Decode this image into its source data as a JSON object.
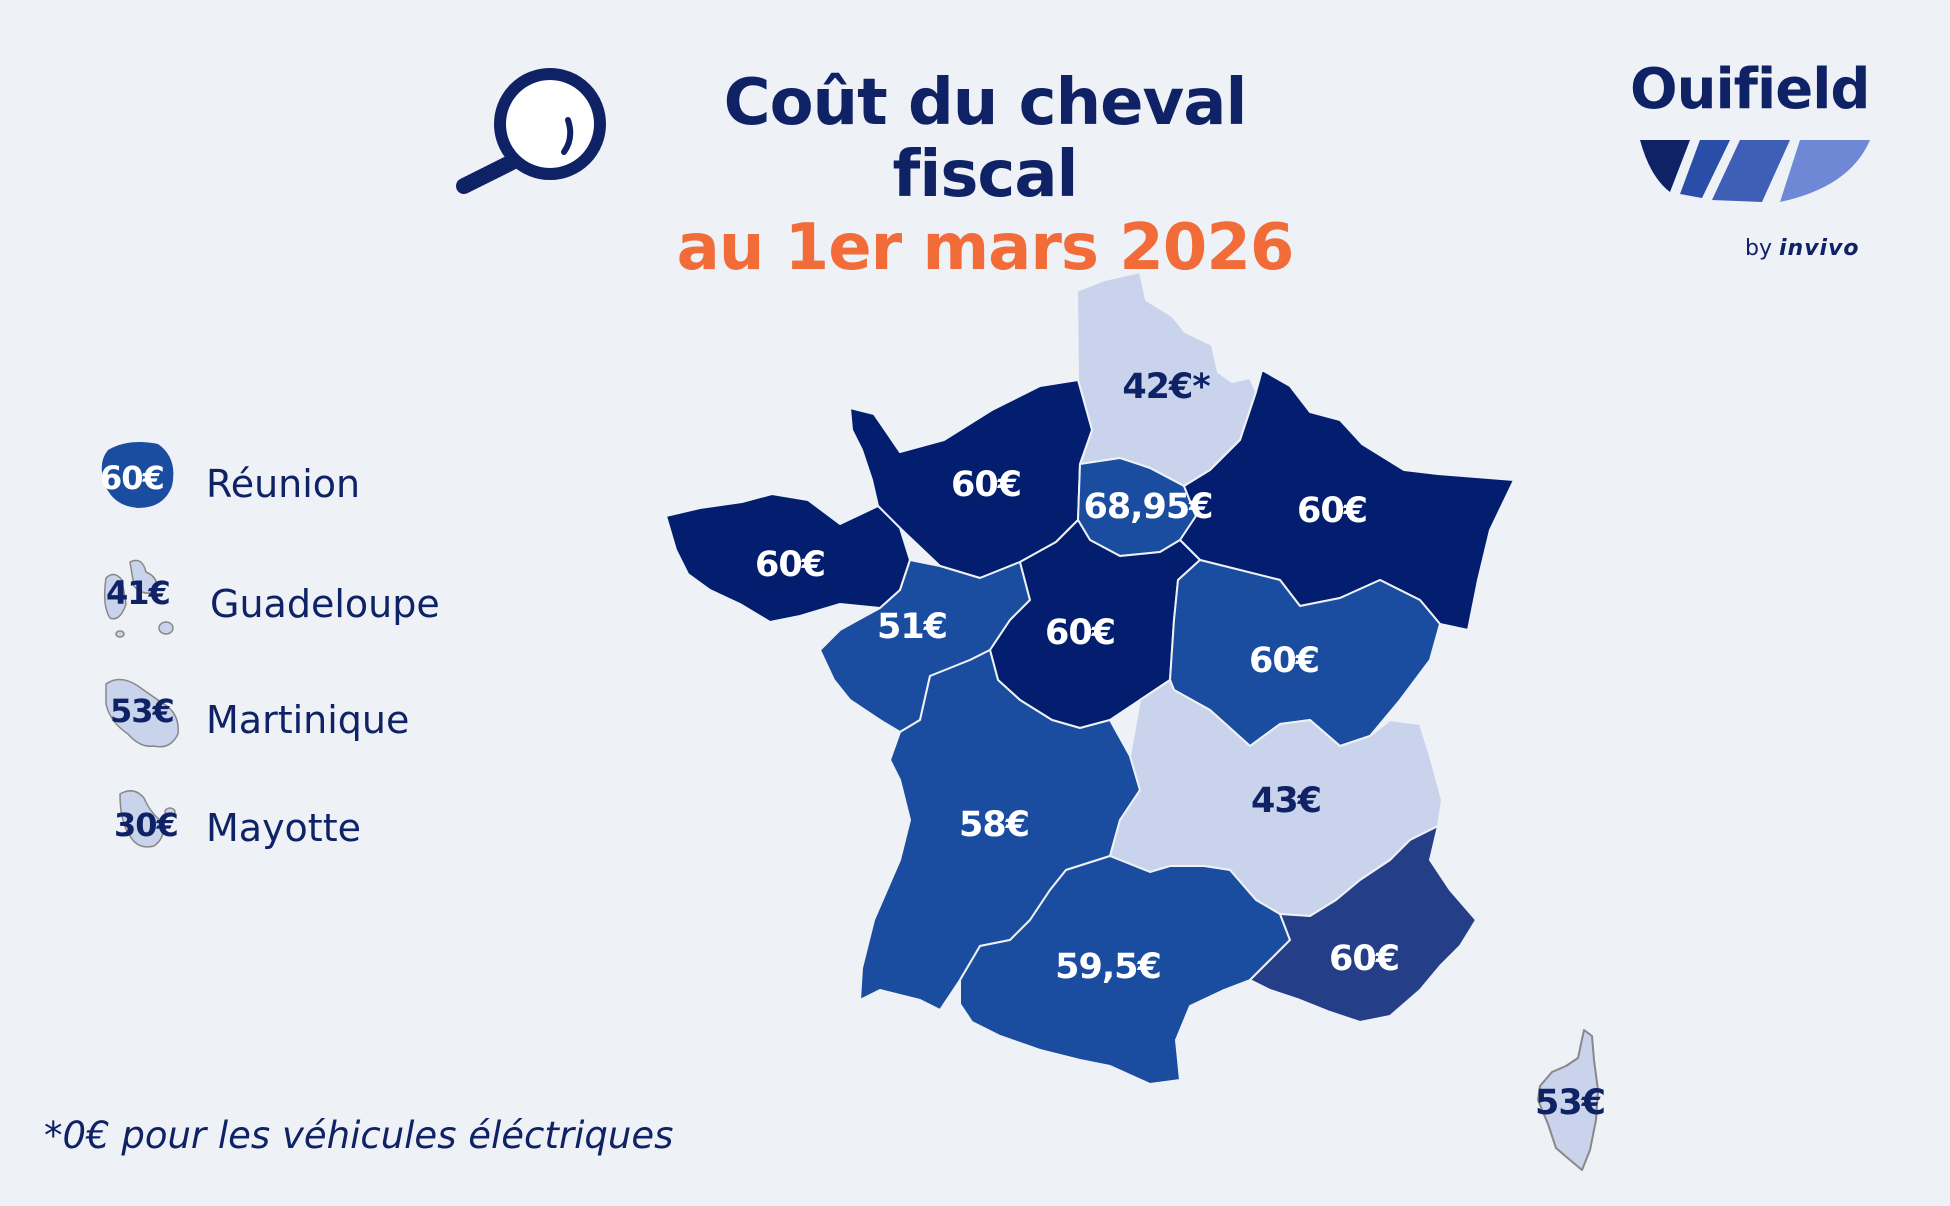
{
  "header": {
    "title_line1": "Coût du cheval fiscal",
    "title_line2": "au 1er mars 2026"
  },
  "logo": {
    "brand": "Ouifield",
    "by": "by",
    "parent": "invivo"
  },
  "colors": {
    "darkest": "#031e6e",
    "dark": "#1a4d9f",
    "navy_mid": "#243f87",
    "light": "#c9d4ec",
    "accent": "#f26c3a",
    "text": "#0f2266",
    "background": "#eef1f5"
  },
  "overseas": [
    {
      "name": "Réunion",
      "price": "60€"
    },
    {
      "name": "Guadeloupe",
      "price": "41€"
    },
    {
      "name": "Martinique",
      "price": "53€"
    },
    {
      "name": "Mayotte",
      "price": "30€"
    }
  ],
  "regions": [
    {
      "id": "hauts-de-france",
      "price": "42€*"
    },
    {
      "id": "normandie",
      "price": "60€"
    },
    {
      "id": "ile-de-france",
      "price": "68,95€"
    },
    {
      "id": "grand-est",
      "price": "60€"
    },
    {
      "id": "bretagne",
      "price": "60€"
    },
    {
      "id": "pays-de-la-loire",
      "price": "51€"
    },
    {
      "id": "centre-val-de-loire",
      "price": "60€"
    },
    {
      "id": "bourgogne-franche-comte",
      "price": "60€"
    },
    {
      "id": "nouvelle-aquitaine",
      "price": "58€"
    },
    {
      "id": "auvergne-rhone-alpes",
      "price": "43€"
    },
    {
      "id": "occitanie",
      "price": "59,5€"
    },
    {
      "id": "provence-alpes-cote-dazur",
      "price": "60€"
    },
    {
      "id": "corse",
      "price": "53€"
    }
  ],
  "footnote": "*0€ pour les véhicules éléctriques"
}
